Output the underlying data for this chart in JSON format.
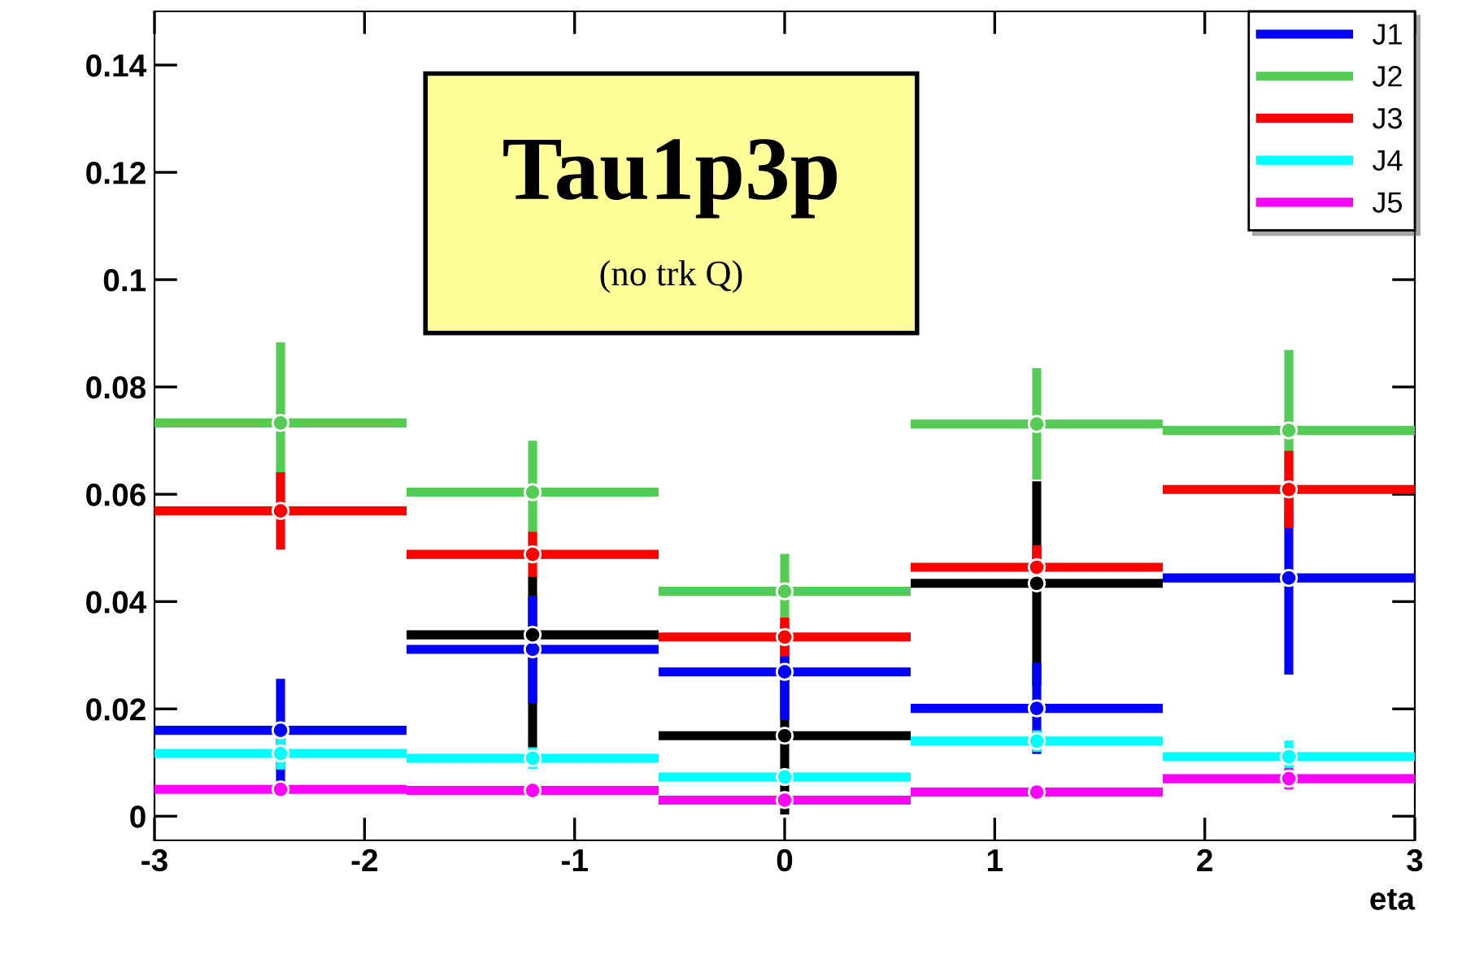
{
  "chart_data": {
    "type": "scatter",
    "xlabel": "eta",
    "marker": "circle",
    "x": [
      -2.4,
      -1.2,
      0,
      1.2,
      2.4
    ],
    "series": [
      {
        "name": "J1",
        "color": "#0000ff",
        "values": [
          0.016,
          0.0311,
          0.0269,
          0.0201,
          0.0444
        ],
        "errors": [
          0.0096,
          0.01,
          0.009,
          0.0085,
          0.018
        ],
        "xerrors": [
          0.6,
          0.6,
          0.6,
          0.6,
          0.6
        ]
      },
      {
        "name": "J2",
        "color": "#55cc55",
        "values": [
          0.0733,
          0.0604,
          0.0419,
          0.0731,
          0.0719
        ],
        "errors": [
          0.015,
          0.0096,
          0.007,
          0.0104,
          0.015
        ],
        "xerrors": [
          0.6,
          0.6,
          0.6,
          0.6,
          0.6
        ]
      },
      {
        "name": "J3",
        "color": "#ff0000",
        "values": [
          0.0569,
          0.0488,
          0.0334,
          0.0464,
          0.0609
        ],
        "errors": [
          0.0072,
          0.0042,
          0.0036,
          0.0041,
          0.0072
        ],
        "xerrors": [
          0.6,
          0.6,
          0.6,
          0.6,
          0.6
        ]
      },
      {
        "name": "J4",
        "color": "#00ffff",
        "values": [
          0.0117,
          0.0108,
          0.0073,
          0.014,
          0.0111
        ],
        "errors": [
          0.003,
          0.002,
          0.001,
          0.002,
          0.003
        ],
        "xerrors": [
          0.6,
          0.6,
          0.6,
          0.6,
          0.6
        ]
      },
      {
        "name": "J5",
        "color": "#ff00ff",
        "values": [
          0.005,
          0.0048,
          0.003,
          0.0045,
          0.007
        ],
        "errors": [
          0.001,
          0.001,
          0.001,
          0.001,
          0.002
        ],
        "xerrors": [
          0.6,
          0.6,
          0.6,
          0.6,
          0.6
        ]
      },
      {
        "color": "#000000",
        "values": [
          null,
          0.0338,
          0.015,
          0.0434,
          null
        ],
        "errors": [
          null,
          [
            0.0128,
            0.0447
          ],
          0.0147,
          0.019,
          null
        ],
        "xerrors": [
          null,
          0.6,
          0.6,
          0.6,
          null
        ]
      }
    ],
    "xlim": [
      -3,
      3
    ],
    "xticks": [
      -3,
      -2,
      -1,
      0,
      1,
      2,
      3
    ],
    "ylim": [
      -0.0045,
      0.15
    ],
    "yticks": [
      0,
      0.02,
      0.04,
      0.06,
      0.08,
      0.1,
      0.12,
      0.14
    ],
    "grid": false,
    "legend": "top right",
    "annotations": [
      "Tau1p3p",
      "(no trk Q)"
    ]
  }
}
